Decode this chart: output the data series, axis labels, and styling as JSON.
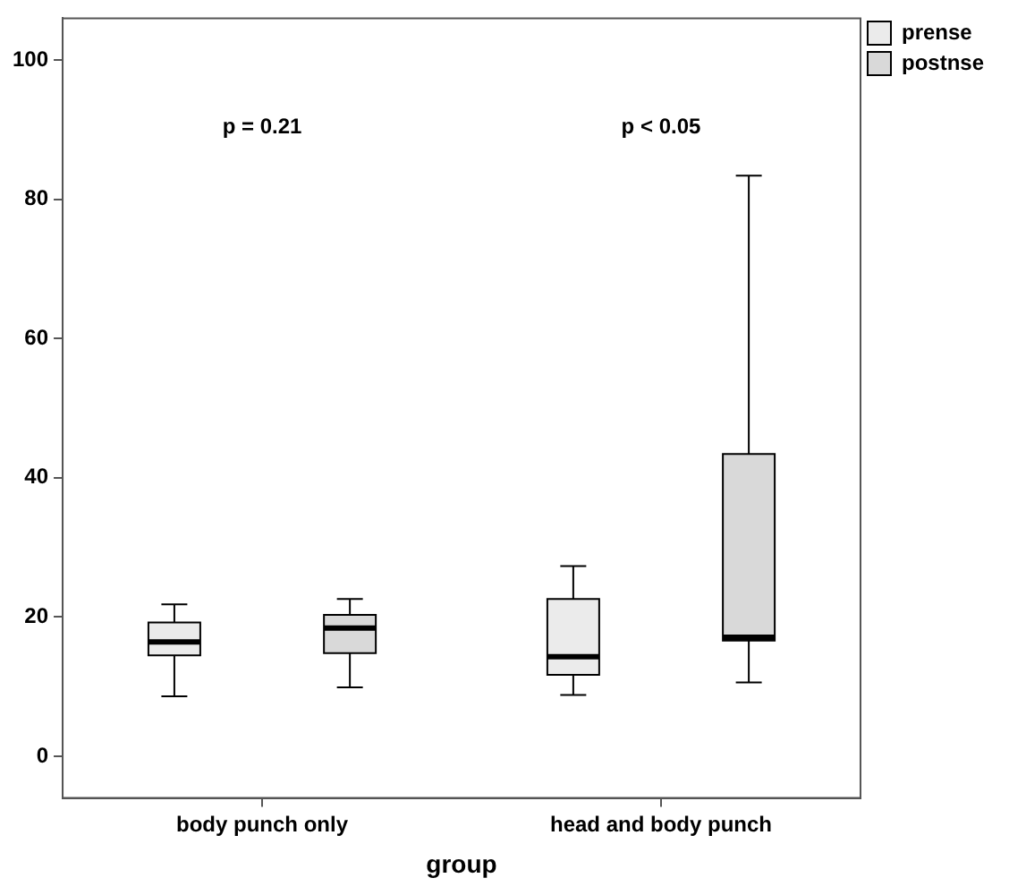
{
  "chart_data": {
    "type": "box",
    "categories": [
      "body punch only",
      "head and body punch"
    ],
    "series": [
      {
        "name": "prense",
        "color": "#ebebeb",
        "boxes": [
          {
            "low": 8.6,
            "q1": 14.5,
            "median": 16.4,
            "q3": 19.2,
            "high": 21.8
          },
          {
            "low": 8.8,
            "q1": 11.7,
            "median": 14.3,
            "q3": 22.6,
            "high": 27.3
          }
        ]
      },
      {
        "name": "postnse",
        "color": "#d9d9d9",
        "boxes": [
          {
            "low": 9.9,
            "q1": 14.8,
            "median": 18.4,
            "q3": 20.3,
            "high": 22.6
          },
          {
            "low": 10.6,
            "q1": 16.6,
            "median": 17.1,
            "q3": 43.4,
            "high": 83.4
          }
        ]
      }
    ],
    "xlabel": "group",
    "ylim": [
      -6,
      106
    ],
    "yticks": [
      0,
      20,
      40,
      60,
      80,
      100
    ],
    "grid": false,
    "legend": "top right",
    "annotations": [
      "p = 0.21",
      "p < 0.05"
    ]
  }
}
